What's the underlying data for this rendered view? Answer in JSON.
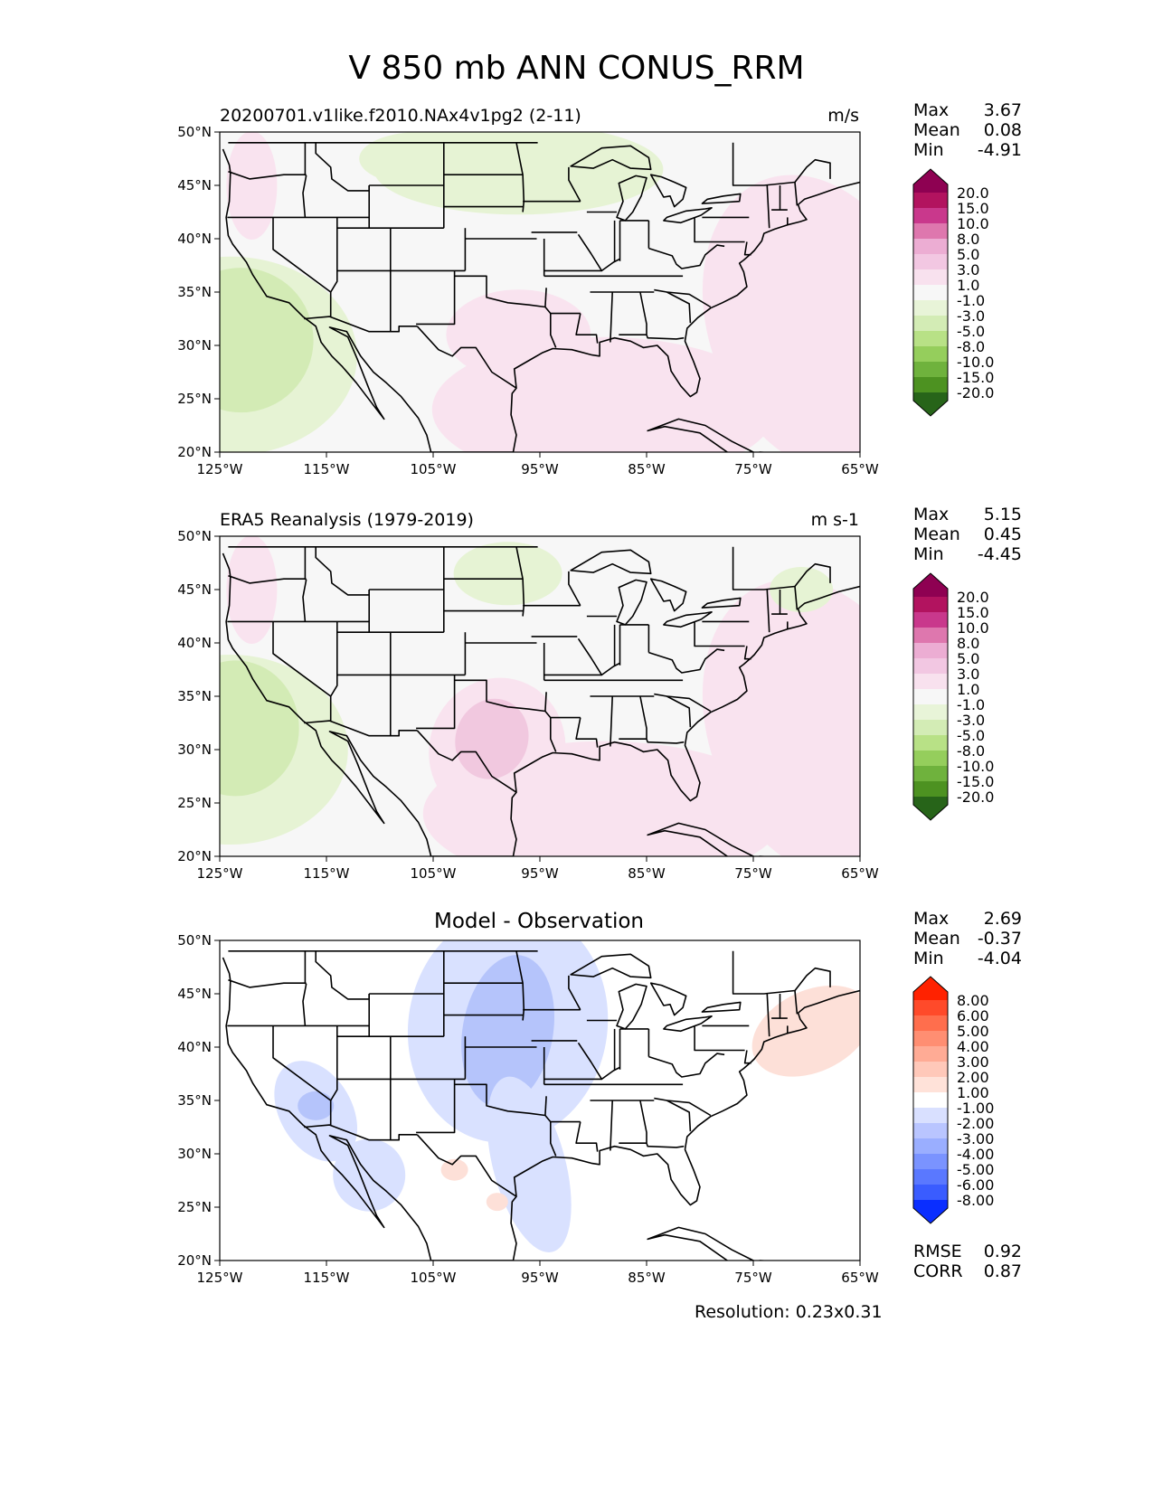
{
  "title": "V 850 mb ANN CONUS_RRM",
  "axes": {
    "lat_ticks": [
      "50°N",
      "45°N",
      "40°N",
      "35°N",
      "30°N",
      "25°N",
      "20°N"
    ],
    "lon_ticks": [
      "125°W",
      "115°W",
      "105°W",
      "95°W",
      "85°W",
      "75°W",
      "65°W"
    ]
  },
  "panels": [
    {
      "title": "20200701.v1like.f2010.NAx4v1pg2 (2-11)",
      "units": "m/s",
      "stats": [
        {
          "label": "Max",
          "value": "3.67"
        },
        {
          "label": "Mean",
          "value": "0.08"
        },
        {
          "label": "Min",
          "value": "-4.91"
        }
      ],
      "colorbar": {
        "levels": [
          "20.0",
          "15.0",
          "10.0",
          "8.0",
          "5.0",
          "3.0",
          "1.0",
          "-1.0",
          "-3.0",
          "-5.0",
          "-8.0",
          "-10.0",
          "-15.0",
          "-20.0"
        ],
        "colors": [
          "#8e0152",
          "#b2135f",
          "#c9388c",
          "#de77ae",
          "#ecadd3",
          "#f2c7e2",
          "#f8e1ee",
          "#f7f7f7",
          "#e8f4d8",
          "#d3ecb5",
          "#b8e186",
          "#95ce5c",
          "#6fb23d",
          "#4d9221",
          "#276419"
        ]
      }
    },
    {
      "title": "ERA5 Reanalysis (1979-2019)",
      "units": "m s-1",
      "stats": [
        {
          "label": "Max",
          "value": "5.15"
        },
        {
          "label": "Mean",
          "value": "0.45"
        },
        {
          "label": "Min",
          "value": "-4.45"
        }
      ],
      "colorbar": {
        "levels": [
          "20.0",
          "15.0",
          "10.0",
          "8.0",
          "5.0",
          "3.0",
          "1.0",
          "-1.0",
          "-3.0",
          "-5.0",
          "-8.0",
          "-10.0",
          "-15.0",
          "-20.0"
        ],
        "colors": [
          "#8e0152",
          "#b2135f",
          "#c9388c",
          "#de77ae",
          "#ecadd3",
          "#f2c7e2",
          "#f8e1ee",
          "#f7f7f7",
          "#e8f4d8",
          "#d3ecb5",
          "#b8e186",
          "#95ce5c",
          "#6fb23d",
          "#4d9221",
          "#276419"
        ]
      }
    },
    {
      "title": "Model - Observation",
      "stats": [
        {
          "label": "Max",
          "value": "2.69"
        },
        {
          "label": "Mean",
          "value": "-0.37"
        },
        {
          "label": "Min",
          "value": "-4.04"
        }
      ],
      "colorbar": {
        "levels": [
          "8.00",
          "6.00",
          "5.00",
          "4.00",
          "3.00",
          "2.00",
          "1.00",
          "-1.00",
          "-2.00",
          "-3.00",
          "-4.00",
          "-5.00",
          "-6.00",
          "-8.00"
        ],
        "colors": [
          "#ff2200",
          "#ff4a2a",
          "#ff6e4d",
          "#ff8e72",
          "#ffab95",
          "#ffc8b9",
          "#ffe2d9",
          "#ffffff",
          "#d9e0ff",
          "#b9c5ff",
          "#9aaeff",
          "#7a93ff",
          "#5a78ff",
          "#3a5cff",
          "#0a2eff"
        ]
      },
      "metrics": [
        {
          "label": "RMSE",
          "value": "0.92"
        },
        {
          "label": "CORR",
          "value": "0.87"
        }
      ]
    }
  ],
  "resolution": "Resolution: 0.23x0.31",
  "colors": {
    "land": "#f7f7f7",
    "green_light": "#e6f3d4",
    "green_mid": "#d3ebb5",
    "pink_light": "#f9e3ef",
    "pink_mid": "#f1c8df",
    "blue_light": "#d9e1ff",
    "blue_mid": "#b5c4fb",
    "red_light": "#fde0d8"
  }
}
